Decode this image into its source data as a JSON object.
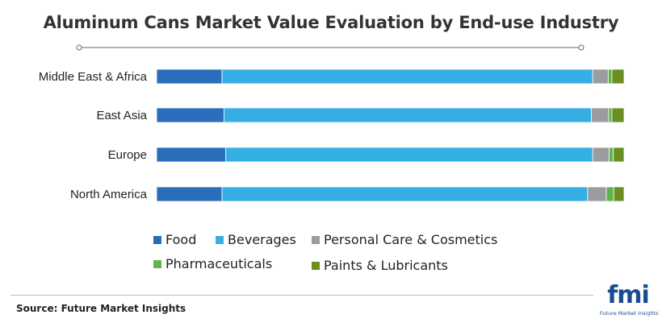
{
  "title": "Aluminum Cans Market Value Evaluation by End-use Industry",
  "source": "Source: Future Market Insights",
  "logo": {
    "mark": "fmi",
    "tagline": "Future Market Insights"
  },
  "colors": {
    "Food": "#2a6ebb",
    "Beverages": "#35aee3",
    "Personal Care & Cosmetics": "#9a9ca0",
    "Pharmaceuticals": "#5fb54a",
    "Paints & Lubricants": "#6b8e23",
    "logo": "#1a4d8f"
  },
  "chart_data": {
    "type": "bar",
    "orientation": "horizontal",
    "stacked": true,
    "normalized": true,
    "categories": [
      "Middle East & Africa",
      "East Asia",
      "Europe",
      "North America"
    ],
    "series": [
      {
        "name": "Food",
        "values": [
          14,
          14.4,
          14.8,
          14
        ]
      },
      {
        "name": "Beverages",
        "values": [
          79.3,
          78.6,
          78.5,
          78.2
        ]
      },
      {
        "name": "Personal Care & Cosmetics",
        "values": [
          3.3,
          3.7,
          3.5,
          4
        ]
      },
      {
        "name": "Pharmaceuticals",
        "values": [
          0.8,
          0.7,
          0.9,
          1.6
        ]
      },
      {
        "name": "Paints & Lubricants",
        "values": [
          2.6,
          2.6,
          2.3,
          2.2
        ]
      }
    ],
    "xlim": [
      0,
      100
    ],
    "xlabel": "",
    "ylabel": "",
    "grid": false,
    "legend": "bottom"
  }
}
